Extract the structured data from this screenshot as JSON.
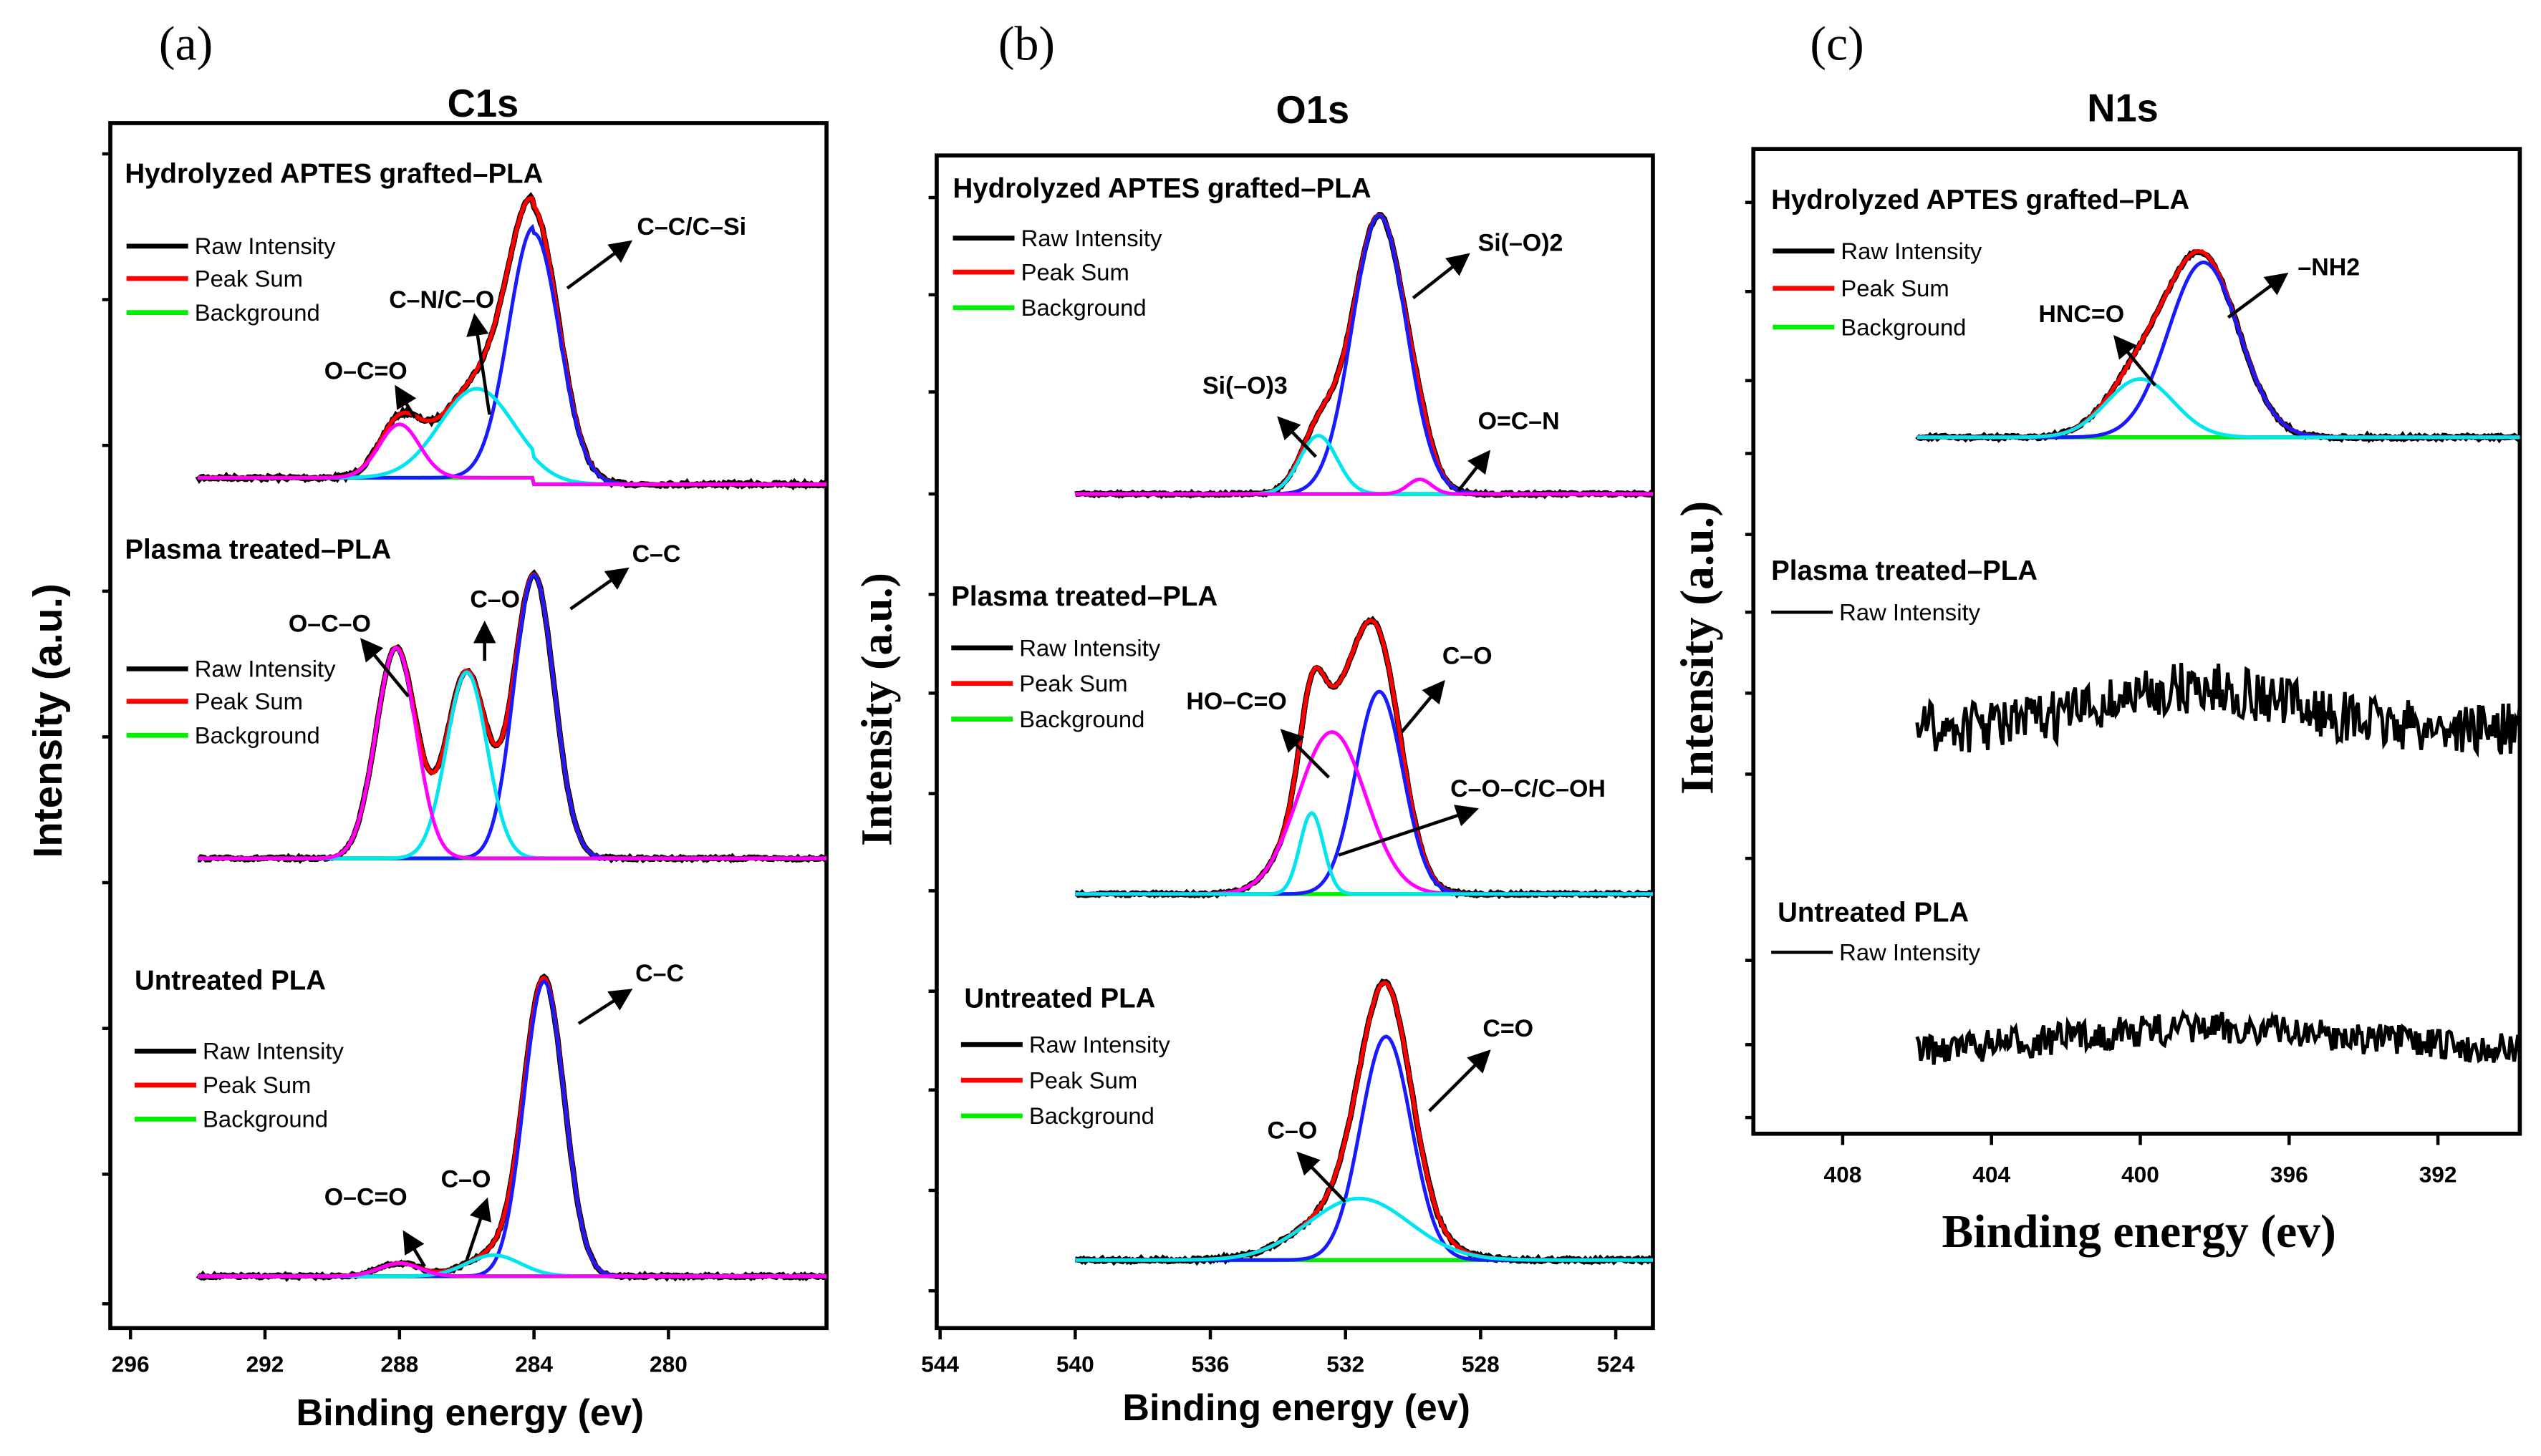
{
  "panel_letters": [
    "(a)",
    "(b)",
    "(c)"
  ],
  "chart_data": [
    {
      "type": "line",
      "title": "C1s",
      "xlabel": "Binding energy (ev)",
      "ylabel": "Intensity (a.u.)",
      "xlim": [
        296.6,
        275.3
      ],
      "xticks": [
        "296",
        "292",
        "288",
        "284",
        "280"
      ],
      "xtick_values": [
        296,
        292,
        288,
        284,
        280
      ],
      "data_start": 294,
      "spectra": [
        {
          "name": "Hydrolyzed APTES grafted–PLA",
          "legend": [
            "Raw Intensity",
            "Peak Sum",
            "Background"
          ],
          "components": [
            {
              "label": "C–C/C–Si",
              "center": 284.0,
              "height": 155,
              "sigma": 0.75,
              "color": "#1a1aff"
            },
            {
              "label": "C–N/C–O",
              "center": 285.7,
              "height": 55,
              "sigma": 1.1,
              "color": "#00e5ee"
            },
            {
              "label": "O–C=O",
              "center": 288.0,
              "height": 33,
              "sigma": 0.6,
              "color": "#ff00ff"
            }
          ],
          "noise": 2
        },
        {
          "name": "Plasma treated–PLA",
          "legend": [
            "Raw Intensity",
            "Peak Sum",
            "Background"
          ],
          "components": [
            {
              "label": "C–C",
              "center": 284.0,
              "height": 175,
              "sigma": 0.6,
              "color": "#1a1aff"
            },
            {
              "label": "C–O",
              "center": 286.0,
              "height": 115,
              "sigma": 0.6,
              "color": "#00e5ee"
            },
            {
              "label": "O–C–O",
              "center": 288.1,
              "height": 130,
              "sigma": 0.6,
              "color": "#ff00ff"
            }
          ],
          "noise": 1.5
        },
        {
          "name": "Untreated PLA",
          "legend": [
            "Raw Intensity",
            "Peak Sum",
            "Background"
          ],
          "components": [
            {
              "label": "C–C",
              "center": 283.7,
              "height": 182,
              "sigma": 0.6,
              "color": "#1a1aff"
            },
            {
              "label": "C–O",
              "center": 285.2,
              "height": 13,
              "sigma": 0.8,
              "color": "#00e5ee"
            },
            {
              "label": "O–C=O",
              "center": 288.0,
              "height": 8,
              "sigma": 0.6,
              "color": "#ff00ff"
            }
          ],
          "noise": 1.5
        }
      ]
    },
    {
      "type": "line",
      "title": "O1s",
      "xlabel": "Binding energy (ev)",
      "ylabel": "Intensity (a.u.)",
      "xlim": [
        544.1,
        522.9
      ],
      "xticks": [
        "544",
        "540",
        "536",
        "532",
        "528",
        "524"
      ],
      "xtick_values": [
        544,
        540,
        536,
        532,
        528,
        524
      ],
      "data_start": 540,
      "spectra": [
        {
          "name": "Hydrolyzed APTES grafted–PLA",
          "legend": [
            "Raw Intensity",
            "Peak Sum",
            "Background"
          ],
          "components": [
            {
              "label": "Si(–O)2",
              "center": 531.0,
              "height": 172,
              "sigma": 0.8,
              "color": "#1a1aff"
            },
            {
              "label": "Si(–O)3",
              "center": 532.8,
              "height": 36,
              "sigma": 0.55,
              "color": "#00e5ee"
            },
            {
              "label": "O=C–N",
              "center": 529.8,
              "height": 9,
              "sigma": 0.35,
              "color": "#ff00ff"
            }
          ],
          "noise": 1.5
        },
        {
          "name": "Plasma treated–PLA",
          "legend": [
            "Raw Intensity",
            "Peak Sum",
            "Background"
          ],
          "components": [
            {
              "label": "C–O",
              "center": 531.0,
              "height": 125,
              "sigma": 0.7,
              "color": "#1a1aff"
            },
            {
              "label": "HO–C=O",
              "center": 532.4,
              "height": 100,
              "sigma": 1.0,
              "color": "#ff00ff"
            },
            {
              "label": "C–O–C/C–OH",
              "center": 533.0,
              "height": 50,
              "sigma": 0.35,
              "color": "#00e5ee"
            }
          ],
          "noise": 1.5
        },
        {
          "name": "Untreated PLA",
          "legend": [
            "Raw Intensity",
            "Peak Sum",
            "Background"
          ],
          "components": [
            {
              "label": "C=O",
              "center": 530.8,
              "height": 138,
              "sigma": 0.75,
              "color": "#1a1aff"
            },
            {
              "label": "C–O",
              "center": 531.6,
              "height": 38,
              "sigma": 1.5,
              "color": "#00e5ee"
            }
          ],
          "noise": 2
        }
      ]
    },
    {
      "type": "line",
      "title": "N1s",
      "xlabel": "Binding energy (ev)",
      "ylabel": "Intensity (a.u.)",
      "xlim": [
        410.4,
        389.8
      ],
      "xticks": [
        "408",
        "404",
        "400",
        "396",
        "392"
      ],
      "xtick_values": [
        408,
        404,
        400,
        396,
        392
      ],
      "data_start": 406,
      "spectra": [
        {
          "name": "Hydrolyzed APTES grafted–PLA",
          "legend": [
            "Raw Intensity",
            "Peak Sum",
            "Background"
          ],
          "components": [
            {
              "label": "–NH2",
              "center": 398.3,
              "height": 108,
              "sigma": 0.95,
              "color": "#1a1aff"
            },
            {
              "label": "HNC=O",
              "center": 400.0,
              "height": 36,
              "sigma": 0.9,
              "color": "#00e5ee"
            }
          ],
          "noise": 2
        },
        {
          "name": "Plasma treated–PLA",
          "legend": [
            "Raw Intensity"
          ],
          "components": [
            {
              "label": "",
              "center": 398.5,
              "height": 25,
              "sigma": 2.5,
              "color": "none"
            }
          ],
          "noise": 16
        },
        {
          "name": "Untreated PLA",
          "legend": [
            "Raw Intensity"
          ],
          "components": [
            {
              "label": "",
              "center": 398.0,
              "height": 15,
              "sigma": 4,
              "color": "none"
            }
          ],
          "noise": 10
        }
      ]
    }
  ]
}
